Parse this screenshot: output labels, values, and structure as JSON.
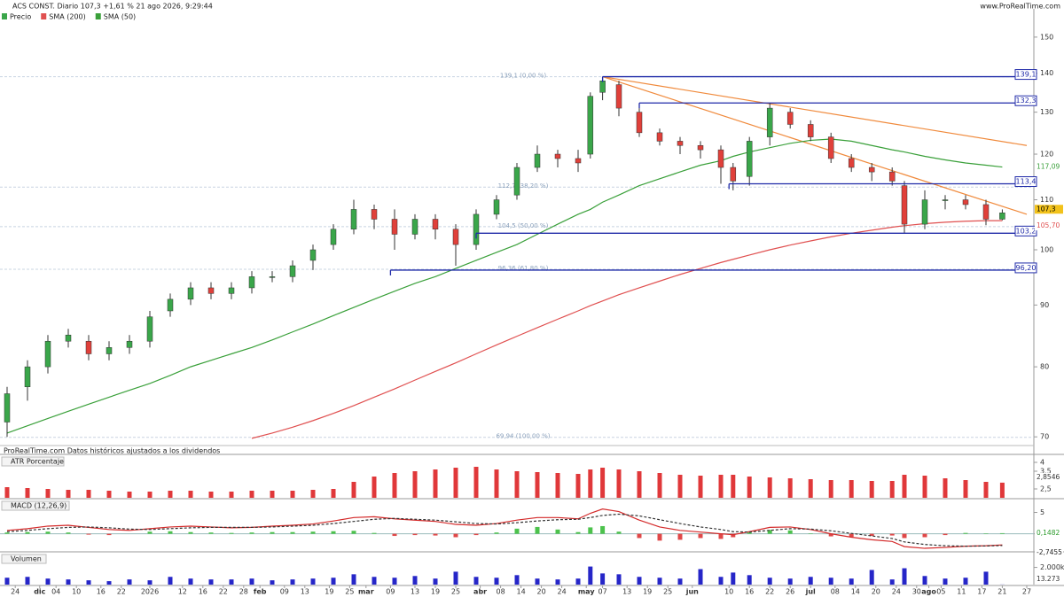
{
  "header": {
    "title": "ACS CONST. Diario 107,3 +1,61 % 21 ago 2026, 9:29:44",
    "site": "www.ProRealTime.com",
    "footer": "ProRealTime.com Datos históricos ajustados a los dividendos"
  },
  "chart_data": [
    {
      "type": "candlestick",
      "name": "Precio",
      "log_scale": true,
      "up_color": "#3aa64a",
      "down_color": "#e0403a",
      "xlim": [
        0,
        250
      ],
      "ylim": [
        69.2,
        158.3
      ],
      "yticks": [
        150,
        140,
        130,
        120,
        110,
        100,
        90,
        80,
        70
      ],
      "xticks": [
        {
          "value": 2,
          "label": "24"
        },
        {
          "value": 8,
          "label": "dic"
        },
        {
          "value": 12,
          "label": "04"
        },
        {
          "value": 17,
          "label": "10"
        },
        {
          "value": 23,
          "label": "16"
        },
        {
          "value": 28,
          "label": "22"
        },
        {
          "value": 35,
          "label": "2026"
        },
        {
          "value": 43,
          "label": "12"
        },
        {
          "value": 48,
          "label": "16"
        },
        {
          "value": 53,
          "label": "22"
        },
        {
          "value": 58,
          "label": "28"
        },
        {
          "value": 62,
          "label": "feb"
        },
        {
          "value": 68,
          "label": "09"
        },
        {
          "value": 73,
          "label": "13"
        },
        {
          "value": 79,
          "label": "19"
        },
        {
          "value": 84,
          "label": "25"
        },
        {
          "value": 88,
          "label": "mar"
        },
        {
          "value": 94,
          "label": "09"
        },
        {
          "value": 100,
          "label": "13"
        },
        {
          "value": 105,
          "label": "19"
        },
        {
          "value": 110,
          "label": "25"
        },
        {
          "value": 116,
          "label": "abr"
        },
        {
          "value": 121,
          "label": "08"
        },
        {
          "value": 126,
          "label": "14"
        },
        {
          "value": 131,
          "label": "20"
        },
        {
          "value": 136,
          "label": "24"
        },
        {
          "value": 142,
          "label": "may"
        },
        {
          "value": 146,
          "label": "07"
        },
        {
          "value": 152,
          "label": "13"
        },
        {
          "value": 157,
          "label": "19"
        },
        {
          "value": 162,
          "label": "25"
        },
        {
          "value": 168,
          "label": "jun"
        },
        {
          "value": 177,
          "label": "10"
        },
        {
          "value": 182,
          "label": "16"
        },
        {
          "value": 187,
          "label": "22"
        },
        {
          "value": 192,
          "label": "26"
        },
        {
          "value": 197,
          "label": "jul"
        },
        {
          "value": 203,
          "label": "08"
        },
        {
          "value": 208,
          "label": "14"
        },
        {
          "value": 213,
          "label": "20"
        },
        {
          "value": 218,
          "label": "24"
        },
        {
          "value": 223,
          "label": "30"
        },
        {
          "value": 226,
          "label": "ago"
        },
        {
          "value": 229,
          "label": "05"
        },
        {
          "value": 234,
          "label": "11"
        },
        {
          "value": 239,
          "label": "17"
        },
        {
          "value": 244,
          "label": "21"
        },
        {
          "value": 250,
          "label": "27"
        }
      ],
      "x": [
        0,
        5,
        10,
        15,
        20,
        25,
        30,
        35,
        40,
        45,
        50,
        55,
        60,
        65,
        70,
        75,
        80,
        85,
        90,
        95,
        100,
        105,
        110,
        115,
        120,
        125,
        130,
        135,
        140,
        143,
        146,
        150,
        155,
        160,
        165,
        170,
        175,
        178,
        182,
        187,
        192,
        197,
        202,
        207,
        212,
        217,
        220,
        225,
        230,
        235,
        240,
        244
      ],
      "open": [
        72,
        77,
        80,
        84,
        84,
        82,
        83,
        84,
        89,
        91,
        93,
        92,
        93,
        95,
        95,
        98,
        101,
        104,
        108,
        106,
        103,
        106,
        104,
        101,
        107,
        111,
        117,
        120,
        119,
        120,
        135,
        137,
        130,
        125,
        123,
        122,
        121,
        117,
        115,
        124,
        130,
        127,
        124,
        119,
        117,
        116,
        113,
        105,
        110,
        110,
        109,
        106
      ],
      "high": [
        77,
        81,
        85,
        86,
        85,
        84,
        85,
        89,
        92,
        94,
        94,
        94,
        96,
        96,
        98,
        101,
        105,
        110,
        109,
        108,
        107,
        107,
        105,
        108,
        111,
        118,
        122,
        121,
        121,
        135,
        139.1,
        138,
        131,
        126,
        124,
        123,
        122,
        118,
        124,
        132.3,
        131,
        128,
        125,
        120,
        118,
        117,
        114,
        112,
        111,
        111,
        110,
        108
      ],
      "low": [
        70,
        75,
        79,
        83,
        81,
        81,
        82,
        83,
        88,
        90,
        91,
        91,
        92,
        94,
        94,
        96.2,
        100,
        103,
        104,
        100,
        102,
        102,
        97,
        100,
        106,
        110,
        116,
        117,
        116,
        119,
        133,
        129,
        124,
        122,
        120,
        119,
        113.4,
        112,
        113,
        122,
        126,
        123,
        118,
        116,
        114,
        113,
        103.2,
        104,
        108,
        108,
        104.8,
        105.8
      ],
      "close": [
        76,
        80,
        84,
        85,
        82,
        83,
        84,
        88,
        91,
        93,
        92,
        93,
        95,
        95,
        97,
        100,
        104,
        108,
        106,
        103,
        106,
        104,
        101,
        107,
        110,
        117,
        120,
        119,
        118,
        134,
        138,
        131,
        125,
        123,
        122,
        121,
        117,
        114,
        123,
        131,
        127,
        124,
        119,
        117,
        116,
        114,
        105,
        110,
        110,
        109,
        106,
        107.3
      ],
      "last_label": "107,3",
      "last_color": "#f2c21b",
      "series": [
        {
          "name": "SMA (200)",
          "color": "#e05050",
          "last_label": "105,70",
          "values": [
            null,
            null,
            null,
            null,
            null,
            null,
            null,
            null,
            null,
            null,
            null,
            null,
            69.8,
            70.5,
            71.3,
            72.2,
            73.2,
            74.3,
            75.5,
            76.7,
            78,
            79.3,
            80.6,
            82,
            83.4,
            84.8,
            86.2,
            87.6,
            89,
            89.9,
            90.7,
            91.8,
            93,
            94.2,
            95.4,
            96.5,
            97.6,
            98.2,
            99,
            100,
            100.9,
            101.7,
            102.5,
            103.2,
            103.8,
            104.4,
            104.7,
            105.1,
            105.4,
            105.6,
            105.7,
            105.7
          ]
        },
        {
          "name": "SMA (50)",
          "color": "#3aa03a",
          "last_label": "117,09",
          "values": [
            70.5,
            71.5,
            72.5,
            73.5,
            74.5,
            75.5,
            76.5,
            77.5,
            78.7,
            80,
            81,
            82,
            83,
            84.2,
            85.5,
            86.8,
            88.2,
            89.6,
            91,
            92.4,
            93.8,
            95,
            96.5,
            98,
            99.5,
            101,
            103,
            105,
            107,
            108,
            109.5,
            111,
            113,
            114.5,
            116,
            117.5,
            118.5,
            119.5,
            120.5,
            121.5,
            122.5,
            123.2,
            123.5,
            123,
            122,
            121,
            120.5,
            119.5,
            118.7,
            118,
            117.5,
            117.09
          ]
        }
      ],
      "levels_color": "#1f2aa8",
      "levels": [
        {
          "value": 139.1,
          "label": "139,1",
          "from": 146
        },
        {
          "value": 132.3,
          "label": "132,3",
          "from": 155
        },
        {
          "value": 113.4,
          "label": "113,4",
          "from": 177
        },
        {
          "value": 103.2,
          "label": "103,2",
          "from": 115
        },
        {
          "value": 96.2,
          "label": "96,20",
          "from": 94
        }
      ],
      "fibonacci": [
        {
          "value": 139.1,
          "label": "139,1 (0,00 %)"
        },
        {
          "value": 112.7,
          "label": "112,7 (38,20 %)"
        },
        {
          "value": 104.5,
          "label": "104,5 (50,00 %)"
        },
        {
          "value": 96.36,
          "label": "96,36 (61,80 %)"
        },
        {
          "value": 69.94,
          "label": "69,94 (100,00 %)"
        }
      ],
      "trend_color": "#f08a3c",
      "trendlines": [
        {
          "x": [
            146,
            250
          ],
          "y": [
            139.1,
            122
          ]
        },
        {
          "x": [
            146,
            250
          ],
          "y": [
            139.1,
            107
          ]
        }
      ]
    },
    {
      "type": "bar",
      "title": "ATR Porcentaje",
      "color": "#e0383a",
      "ylim": [
        2.0,
        4.3
      ],
      "yticks": [
        4,
        {
          "value": 3.5,
          "label": "3,5"
        },
        {
          "value": 2.5,
          "label": "2,5"
        }
      ],
      "last_label": "2,8546",
      "values": [
        2.6,
        2.55,
        2.5,
        2.45,
        2.45,
        2.4,
        2.35,
        2.35,
        2.4,
        2.4,
        2.35,
        2.35,
        2.4,
        2.4,
        2.4,
        2.45,
        2.5,
        2.9,
        3.2,
        3.4,
        3.5,
        3.6,
        3.7,
        3.75,
        3.6,
        3.5,
        3.45,
        3.4,
        3.35,
        3.6,
        3.7,
        3.6,
        3.5,
        3.4,
        3.3,
        3.25,
        3.3,
        3.3,
        3.2,
        3.15,
        3.1,
        3.05,
        3.0,
        3.0,
        2.95,
        2.95,
        3.3,
        3.25,
        3.1,
        3.0,
        2.9,
        2.8546
      ]
    },
    {
      "type": "macd",
      "title": "MACD (12,26,9)",
      "ylim": [
        -3.6,
        7.6
      ],
      "yticks": [
        5,
        0
      ],
      "up_color": "#4cc24c",
      "down_color": "#e04848",
      "macd_color": "#d42a2a",
      "signal_color": "#333333",
      "hist_label": "0,1482",
      "signal_label": "-2,7455",
      "hist": [
        0.3,
        0.4,
        0.5,
        0.3,
        -0.2,
        -0.3,
        0,
        0.5,
        0.6,
        0.4,
        0.3,
        0.2,
        0.3,
        0.4,
        0.4,
        0.5,
        0.6,
        0.7,
        0.2,
        -0.5,
        -0.3,
        -0.4,
        -0.8,
        -0.3,
        0.3,
        1.2,
        1.6,
        1.0,
        0.4,
        1.5,
        1.8,
        0.5,
        -1.0,
        -1.6,
        -1.4,
        -1.0,
        -1.2,
        -0.8,
        0.3,
        0.9,
        0.8,
        0.1,
        -0.6,
        -0.7,
        -0.5,
        -0.4,
        -1.0,
        -0.8,
        -0.3,
        0.2,
        0.1,
        0.1482
      ],
      "macd": [
        0.8,
        1.2,
        1.8,
        2.0,
        1.5,
        1.0,
        0.8,
        1.2,
        1.6,
        1.8,
        1.6,
        1.4,
        1.5,
        1.8,
        2.0,
        2.3,
        3.0,
        3.8,
        4.0,
        3.5,
        3.2,
        2.9,
        2.2,
        2.0,
        2.4,
        3.2,
        3.8,
        3.8,
        3.5,
        4.8,
        5.8,
        5.2,
        3.2,
        1.6,
        0.8,
        0.4,
        0.0,
        -0.2,
        0.5,
        1.5,
        1.6,
        1.0,
        0.0,
        -0.8,
        -1.4,
        -1.8,
        -3.0,
        -3.4,
        -3.2,
        -2.9,
        -2.8,
        -2.6
      ],
      "signal": [
        0.5,
        0.8,
        1.2,
        1.5,
        1.6,
        1.4,
        1.1,
        1.0,
        1.2,
        1.4,
        1.5,
        1.5,
        1.5,
        1.6,
        1.8,
        2.0,
        2.4,
        2.9,
        3.4,
        3.6,
        3.4,
        3.2,
        2.8,
        2.4,
        2.3,
        2.6,
        3.0,
        3.3,
        3.4,
        3.8,
        4.3,
        4.6,
        4.2,
        3.3,
        2.4,
        1.6,
        1.0,
        0.5,
        0.4,
        0.8,
        1.2,
        1.1,
        0.7,
        0.1,
        -0.5,
        -1.1,
        -1.9,
        -2.5,
        -2.8,
        -2.9,
        -2.85,
        -2.7455
      ]
    },
    {
      "type": "bar",
      "title": "Volumen",
      "color": "#2626c8",
      "ylim": [
        0,
        3500
      ],
      "yticks": [
        {
          "value": 2000,
          "label": "2.000k"
        }
      ],
      "last_label": "13.273",
      "values": [
        800,
        900,
        700,
        600,
        500,
        400,
        600,
        500,
        900,
        700,
        600,
        600,
        700,
        500,
        600,
        700,
        800,
        1200,
        900,
        800,
        1000,
        700,
        1500,
        900,
        800,
        1100,
        700,
        600,
        700,
        2100,
        1300,
        1200,
        900,
        800,
        700,
        1800,
        900,
        1400,
        1100,
        800,
        700,
        900,
        800,
        700,
        1700,
        600,
        1900,
        1000,
        700,
        800,
        1500,
        13.273
      ]
    }
  ]
}
